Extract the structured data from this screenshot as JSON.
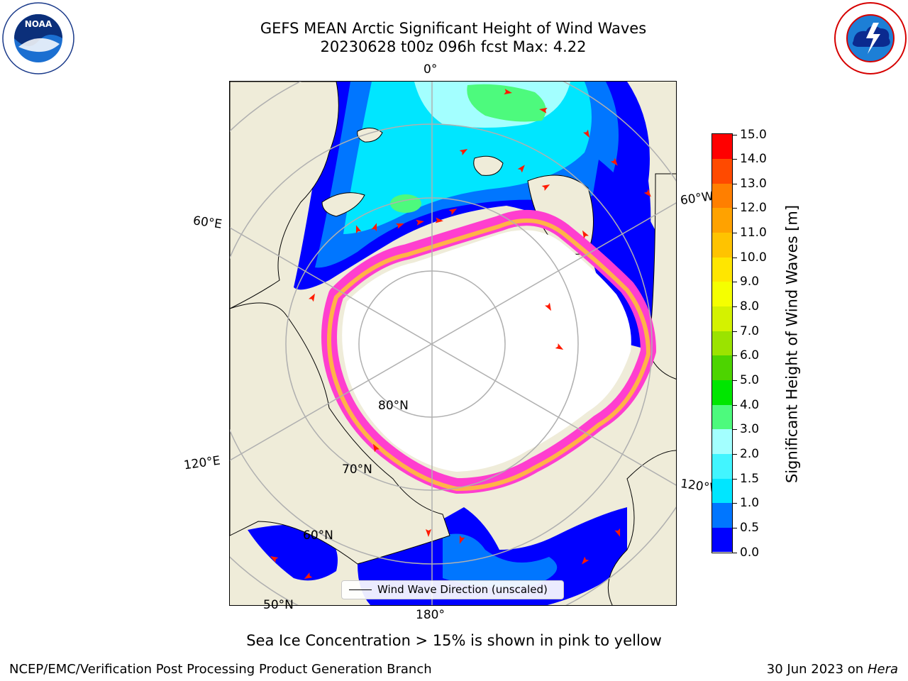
{
  "title_line1": "GEFS MEAN Arctic Significant Height of Wind Waves",
  "title_line2": "20230628 t00z 096h fcst   Max: 4.22",
  "map_labels": {
    "lon_0": "0°",
    "lon_180": "180°",
    "lon_60e": "60°E",
    "lon_120e": "120°E",
    "lon_60w": "60°W",
    "lon_120w": "120°W",
    "lat_80": "80°N",
    "lat_70": "70°N",
    "lat_60": "60°N",
    "lat_50": "50°N"
  },
  "legend_label": "Wind Wave Direction (unscaled)",
  "colorbar": {
    "title": "Significant Height of Wind Waves [m]",
    "ticks": [
      "0.0",
      "0.5",
      "1.0",
      "1.5",
      "2.0",
      "3.0",
      "4.0",
      "5.0",
      "6.0",
      "7.0",
      "8.0",
      "9.0",
      "10.0",
      "11.0",
      "12.0",
      "13.0",
      "14.0",
      "15.0"
    ],
    "colors": [
      "#0000ff",
      "#0076ff",
      "#00e6ff",
      "#42f5ff",
      "#a3ffff",
      "#4dfa7d",
      "#00e600",
      "#4dd400",
      "#9be300",
      "#d4f200",
      "#f5ff00",
      "#ffe600",
      "#ffc300",
      "#ffa200",
      "#ff7f00",
      "#ff4a00",
      "#ff0000"
    ]
  },
  "colors": {
    "land": "#efecd9",
    "ocean_deep": "#0000ff",
    "ocean_mid": "#0076ff",
    "ocean_light": "#00e6ff",
    "ice": "#ff3ecf",
    "ice_edge": "#ffb347",
    "arrow": "#ff1a00",
    "grid": "#b0b0b0"
  },
  "caption": "Sea Ice Concentration > 15% is shown in pink to yellow",
  "footer_left": "NCEP/EMC/Verification Post Processing Product Generation Branch",
  "footer_right_date": "30 Jun 2023 on",
  "footer_right_host": "Hera"
}
